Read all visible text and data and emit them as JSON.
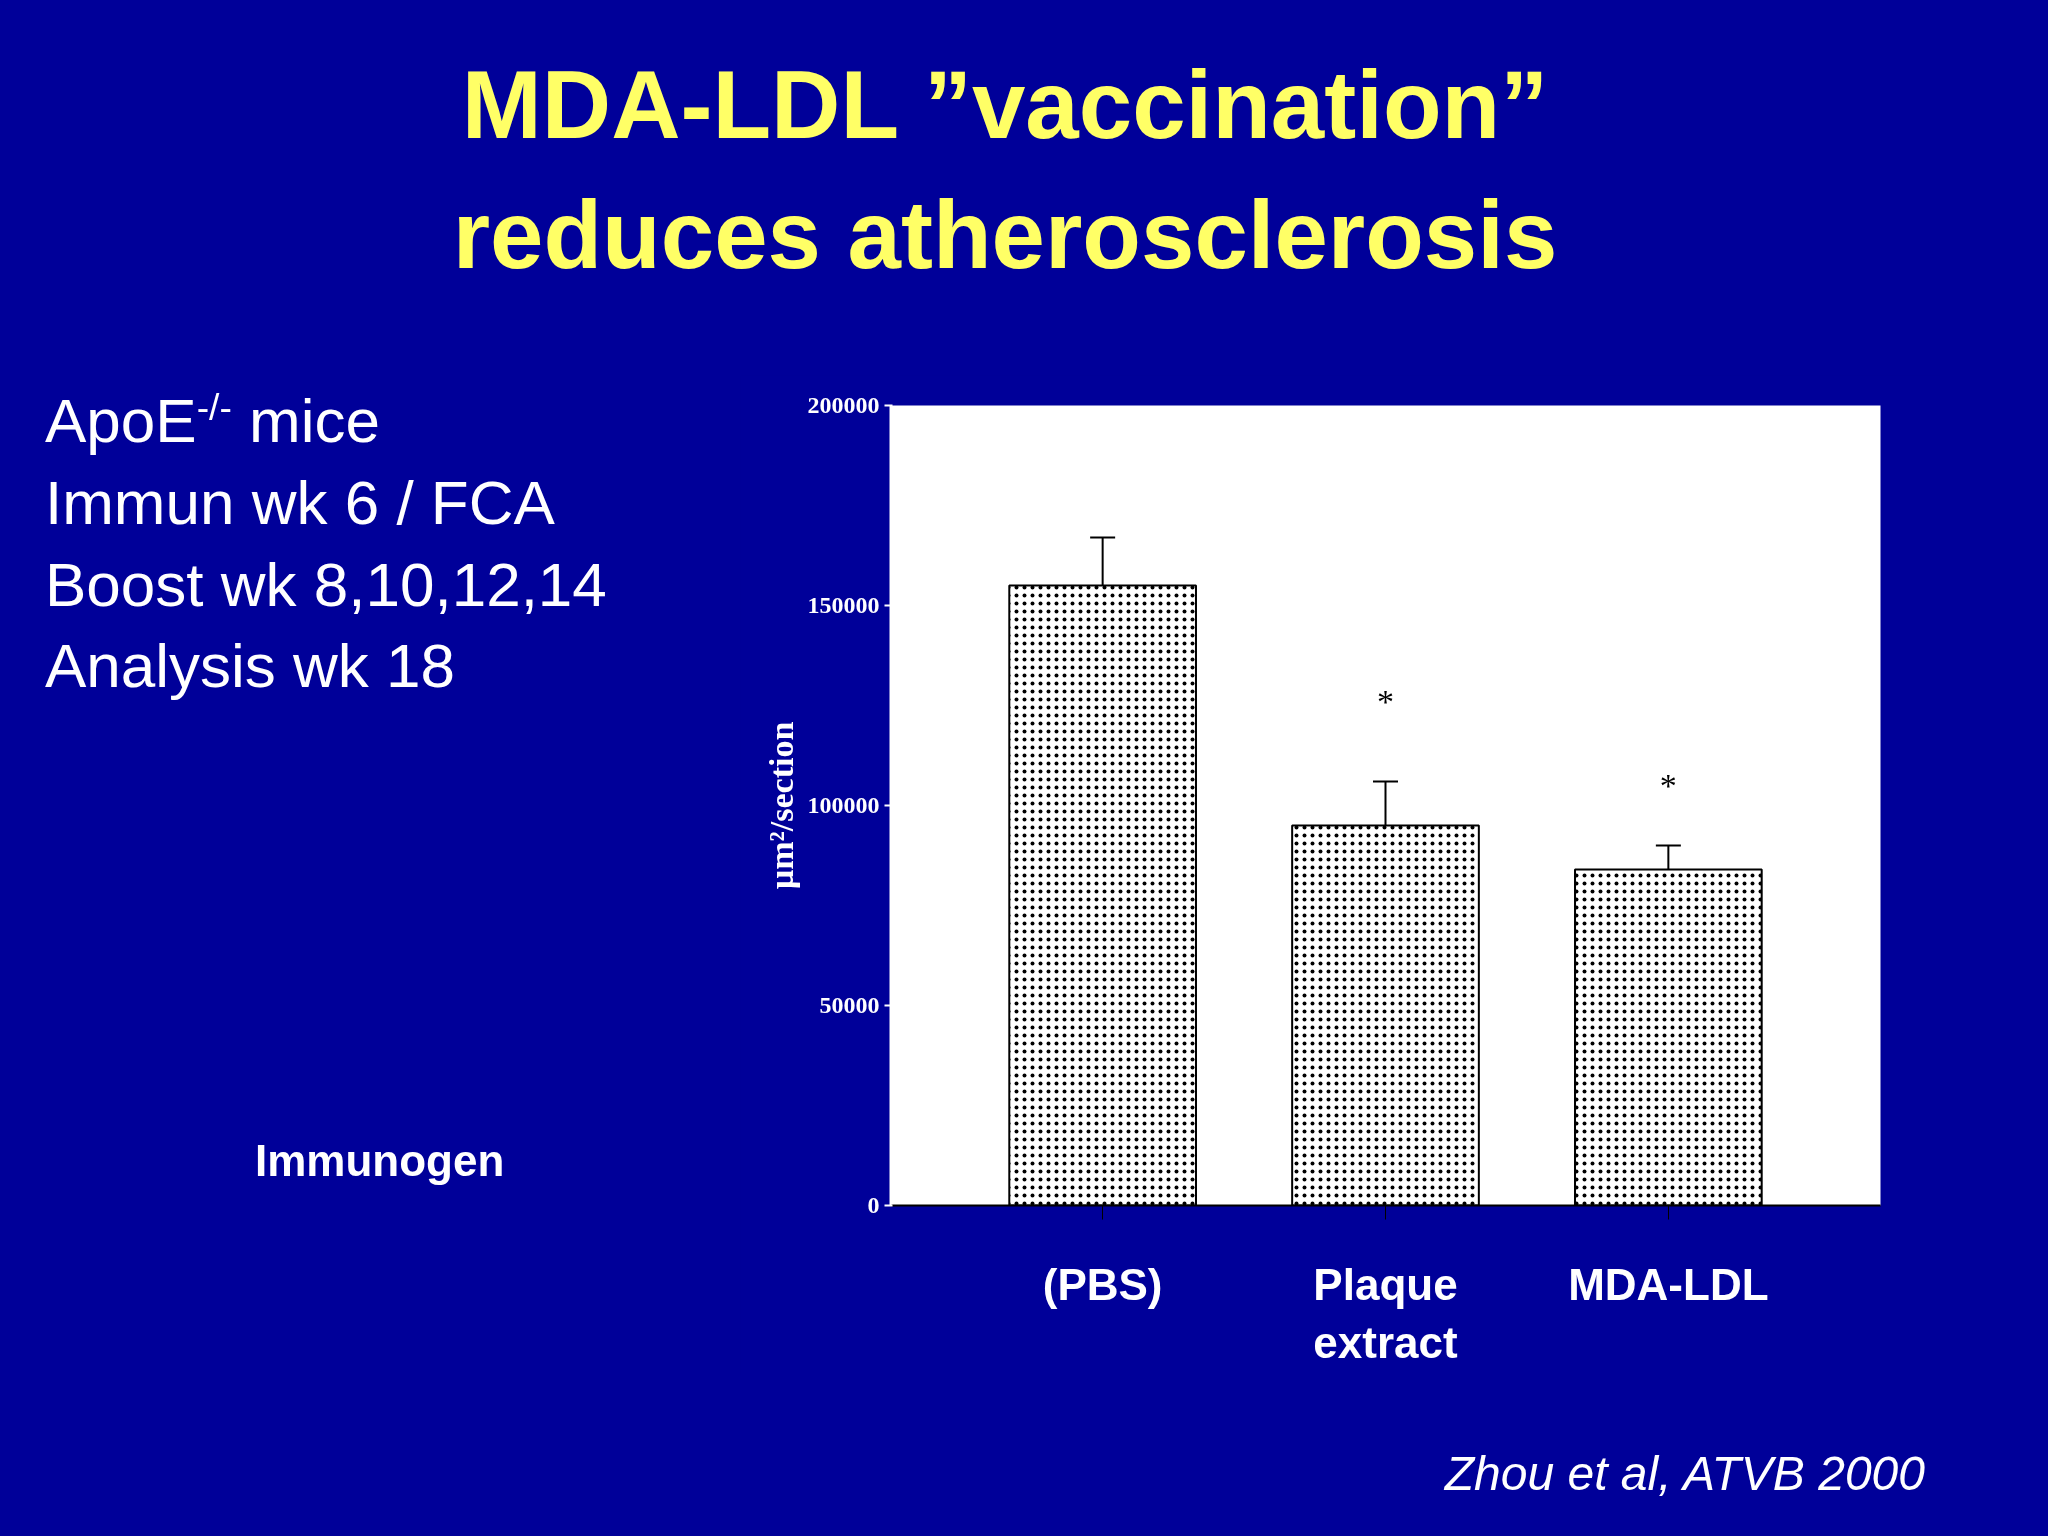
{
  "chart_data": {
    "type": "bar",
    "title": "MDA-LDL ”vaccination”\nreduces atherosclerosis",
    "categories": [
      "(PBS)",
      "Plaque extract",
      "MDA-LDL"
    ],
    "values": [
      155000,
      95000,
      84000
    ],
    "errors": [
      [
        142000,
        167000
      ],
      [
        84000,
        106000
      ],
      [
        77000,
        90000
      ]
    ],
    "color": "#ffffff",
    "ylabel": "µm²/section",
    "ylim": [
      0,
      200000
    ],
    "yticks": [
      0,
      50000,
      100000,
      150000,
      200000
    ],
    "grid": false,
    "annotations": [
      "ApoE$^{-/-}$  mice\nImmun wk 6 / FCA\nBoost wk 8,10,12,14\nAnalysis wk 18",
      "*",
      "*",
      "Immunogen",
      "Zhou et al, ATVB 2000"
    ]
  }
}
